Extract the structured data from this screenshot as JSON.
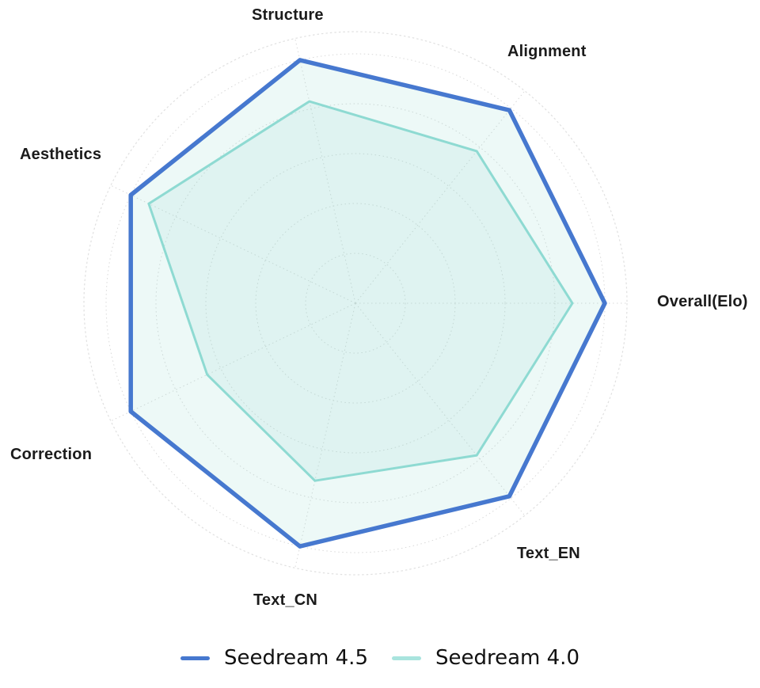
{
  "chart_data": {
    "type": "radar",
    "title": "",
    "categories": [
      "Overall(Elo)",
      "Alignment",
      "Structure",
      "Aesthetics",
      "Correction",
      "Text_CN",
      "Text_EN"
    ],
    "series": [
      {
        "name": "Seedream 4.5",
        "line_color": "#4678cf",
        "fill_color": "rgba(143,216,207,0.16)",
        "line_width": 5.5,
        "values": [
          1.0,
          0.99,
          1.0,
          1.0,
          1.0,
          1.0,
          0.99
        ]
      },
      {
        "name": "Seedream 4.0",
        "line_color": "#8edad2",
        "fill_color": "rgba(143,216,207,0.14)",
        "line_width": 3,
        "values": [
          0.87,
          0.78,
          0.83,
          0.92,
          0.66,
          0.73,
          0.78
        ]
      }
    ],
    "scale_max": 1.0,
    "ring_count": 5,
    "grid_style": "dotted",
    "grid_color": "#d9d9d9",
    "outer_ring_color": "#e0e0e0",
    "legend_position": "bottom",
    "legend_swatch_colors": [
      "#4678cf",
      "#a9e4de"
    ]
  }
}
